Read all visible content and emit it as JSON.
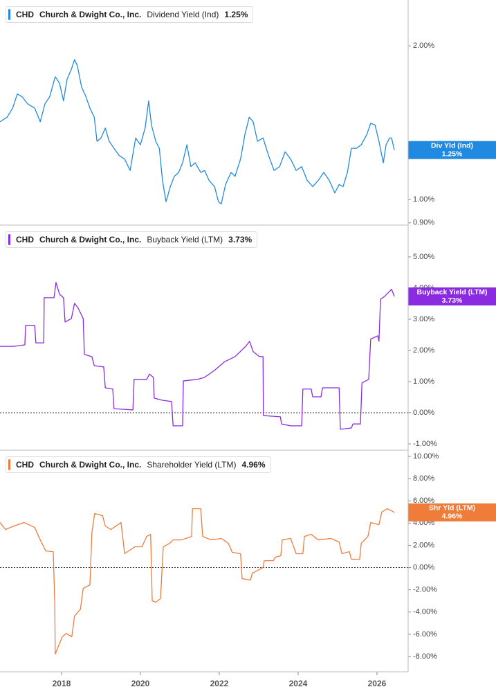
{
  "chart_data": [
    {
      "type": "line",
      "header": {
        "ticker": "CHD",
        "company": "Church & Dwight Co., Inc.",
        "metric": "Dividend Yield (Ind)",
        "value": "1.25%"
      },
      "badge": {
        "name": "Div Yld (Ind)",
        "value": "1.25%"
      },
      "log_scale": true,
      "xlim": [
        2016.44,
        2026.79
      ],
      "ylim": [
        0.891,
        2.46
      ],
      "yticks": [
        {
          "value": 2,
          "label": "2.00%"
        },
        {
          "value": 1,
          "label": "1.00%"
        },
        {
          "value": 0.9,
          "label": "0.90%"
        }
      ],
      "x": [
        2016.44,
        2016.62,
        2016.76,
        2016.88,
        2017.0,
        2017.14,
        2017.32,
        2017.46,
        2017.58,
        2017.7,
        2017.84,
        2017.95,
        2018.05,
        2018.14,
        2018.25,
        2018.33,
        2018.4,
        2018.51,
        2018.62,
        2018.72,
        2018.83,
        2018.9,
        2019.0,
        2019.11,
        2019.21,
        2019.33,
        2019.46,
        2019.6,
        2019.74,
        2019.88,
        2020.0,
        2020.12,
        2020.21,
        2020.28,
        2020.39,
        2020.48,
        2020.56,
        2020.65,
        2020.76,
        2020.86,
        2020.97,
        2021.07,
        2021.18,
        2021.28,
        2021.39,
        2021.53,
        2021.63,
        2021.74,
        2021.88,
        2021.98,
        2022.05,
        2022.16,
        2022.3,
        2022.4,
        2022.54,
        2022.65,
        2022.76,
        2022.86,
        2022.97,
        2023.11,
        2023.25,
        2023.39,
        2023.53,
        2023.67,
        2023.81,
        2023.95,
        2024.09,
        2024.23,
        2024.37,
        2024.51,
        2024.65,
        2024.79,
        2024.93,
        2025.04,
        2025.14,
        2025.25,
        2025.35,
        2025.48,
        2025.6,
        2025.74,
        2025.84,
        2025.95,
        2026.05,
        2026.16,
        2026.23,
        2026.32,
        2026.37,
        2026.44
      ],
      "series": [
        {
          "color": "#1f8ae0",
          "values": [
            1.42,
            1.45,
            1.51,
            1.61,
            1.59,
            1.54,
            1.51,
            1.42,
            1.54,
            1.59,
            1.74,
            1.69,
            1.56,
            1.72,
            1.8,
            1.88,
            1.83,
            1.66,
            1.59,
            1.51,
            1.45,
            1.3,
            1.32,
            1.38,
            1.3,
            1.26,
            1.22,
            1.2,
            1.14,
            1.32,
            1.28,
            1.38,
            1.56,
            1.4,
            1.3,
            1.26,
            1.09,
            0.99,
            1.06,
            1.11,
            1.13,
            1.18,
            1.28,
            1.16,
            1.18,
            1.13,
            1.14,
            1.09,
            1.06,
            0.99,
            0.98,
            1.07,
            1.13,
            1.11,
            1.2,
            1.34,
            1.45,
            1.42,
            1.3,
            1.32,
            1.22,
            1.14,
            1.16,
            1.24,
            1.2,
            1.14,
            1.16,
            1.09,
            1.06,
            1.09,
            1.13,
            1.09,
            1.03,
            1.07,
            1.06,
            1.13,
            1.26,
            1.26,
            1.28,
            1.34,
            1.41,
            1.4,
            1.3,
            1.18,
            1.28,
            1.32,
            1.32,
            1.25
          ]
        }
      ]
    },
    {
      "type": "line",
      "header": {
        "ticker": "CHD",
        "company": "Church & Dwight Co., Inc.",
        "metric": "Buyback Yield (LTM)",
        "value": "3.73%"
      },
      "badge": {
        "name": "Buyback Yield (LTM)",
        "value": "3.73%"
      },
      "zero_line": true,
      "xlim": [
        2016.44,
        2026.79
      ],
      "ylim": [
        -1.2,
        6.02
      ],
      "yticks": [
        {
          "value": 5,
          "label": "5.00%"
        },
        {
          "value": 4,
          "label": "4.00%"
        },
        {
          "value": 3,
          "label": "3.00%"
        },
        {
          "value": 2,
          "label": "2.00%"
        },
        {
          "value": 1,
          "label": "1.00%"
        },
        {
          "value": 0,
          "label": "0.00%"
        },
        {
          "value": -1,
          "label": "-1.00%"
        }
      ],
      "x": [
        2016.44,
        2016.79,
        2017.07,
        2017.09,
        2017.32,
        2017.35,
        2017.55,
        2017.56,
        2017.81,
        2017.86,
        2017.95,
        2018.05,
        2018.09,
        2018.25,
        2018.33,
        2018.42,
        2018.55,
        2018.58,
        2018.77,
        2018.83,
        2019.07,
        2019.11,
        2019.3,
        2019.33,
        2019.81,
        2019.84,
        2020.16,
        2020.23,
        2020.33,
        2020.35,
        2020.56,
        2020.79,
        2020.83,
        2021.07,
        2021.09,
        2021.44,
        2021.62,
        2021.88,
        2022.14,
        2022.4,
        2022.58,
        2022.67,
        2022.77,
        2022.86,
        2023.02,
        2023.11,
        2023.12,
        2023.55,
        2023.58,
        2023.81,
        2024.09,
        2024.12,
        2024.33,
        2024.37,
        2024.58,
        2024.62,
        2025.04,
        2025.07,
        2025.35,
        2025.39,
        2025.58,
        2025.62,
        2025.79,
        2025.84,
        2026.02,
        2026.05,
        2026.09,
        2026.19,
        2026.3,
        2026.37,
        2026.44
      ],
      "series": [
        {
          "color": "#8a2be2",
          "values": [
            2.13,
            2.13,
            2.18,
            2.8,
            2.8,
            2.24,
            2.24,
            3.69,
            3.69,
            4.18,
            3.8,
            3.69,
            2.91,
            3.02,
            3.51,
            3.36,
            3.02,
            1.87,
            1.8,
            1.51,
            1.47,
            0.8,
            0.76,
            0.13,
            0.09,
            1.07,
            1.07,
            1.24,
            1.13,
            0.47,
            0.4,
            0.36,
            -0.42,
            -0.42,
            1.02,
            1.07,
            1.13,
            1.36,
            1.64,
            1.8,
            2.02,
            2.13,
            2.29,
            1.96,
            1.8,
            1.8,
            -0.09,
            -0.13,
            -0.36,
            -0.42,
            -0.42,
            0.76,
            0.76,
            0.51,
            0.51,
            0.8,
            0.8,
            -0.53,
            -0.49,
            -0.36,
            -0.36,
            0.96,
            1.07,
            2.36,
            2.47,
            2.29,
            3.64,
            3.73,
            3.87,
            3.96,
            3.73
          ]
        }
      ]
    },
    {
      "type": "line",
      "header": {
        "ticker": "CHD",
        "company": "Church & Dwight Co., Inc.",
        "metric": "Shareholder Yield (LTM)",
        "value": "4.96%"
      },
      "badge": {
        "name": "Shr Yld (LTM)",
        "value": "4.96%"
      },
      "zero_line": true,
      "xlim": [
        2016.44,
        2026.79
      ],
      "xticks": [
        2018,
        2020,
        2022,
        2024,
        2026
      ],
      "ylim": [
        -9.37,
        10.56
      ],
      "yticks": [
        {
          "value": 10,
          "label": "10.00%"
        },
        {
          "value": 8,
          "label": "8.00%"
        },
        {
          "value": 6,
          "label": "6.00%"
        },
        {
          "value": 4,
          "label": "4.00%"
        },
        {
          "value": 2,
          "label": "2.00%"
        },
        {
          "value": 0,
          "label": "0.00%"
        },
        {
          "value": -2,
          "label": "-2.00%"
        },
        {
          "value": -4,
          "label": "-4.00%"
        },
        {
          "value": -6,
          "label": "-6.00%"
        },
        {
          "value": -8,
          "label": "-8.00%"
        }
      ],
      "x": [
        2016.44,
        2016.58,
        2016.79,
        2017.05,
        2017.32,
        2017.46,
        2017.6,
        2017.79,
        2017.83,
        2017.84,
        2017.91,
        2018.02,
        2018.12,
        2018.26,
        2018.33,
        2018.48,
        2018.55,
        2018.72,
        2018.77,
        2018.84,
        2019.04,
        2019.11,
        2019.25,
        2019.51,
        2019.6,
        2019.86,
        2020.04,
        2020.16,
        2020.26,
        2020.3,
        2020.39,
        2020.51,
        2020.58,
        2020.74,
        2020.83,
        2021.04,
        2021.3,
        2021.32,
        2021.53,
        2021.58,
        2021.79,
        2022.05,
        2022.23,
        2022.33,
        2022.54,
        2022.58,
        2022.79,
        2022.84,
        2023.11,
        2023.14,
        2023.37,
        2023.42,
        2023.56,
        2023.6,
        2023.81,
        2023.95,
        2024.12,
        2024.16,
        2024.33,
        2024.51,
        2024.83,
        2025.04,
        2025.11,
        2025.3,
        2025.35,
        2025.56,
        2025.6,
        2025.77,
        2025.84,
        2026.05,
        2026.12,
        2026.26,
        2026.37,
        2026.44
      ],
      "series": [
        {
          "color": "#f07c3a",
          "values": [
            4.05,
            3.42,
            3.74,
            4.05,
            3.61,
            2.49,
            1.49,
            1.43,
            -3.42,
            -7.78,
            -7.16,
            -6.23,
            -5.92,
            -6.23,
            -4.36,
            -3.74,
            -1.87,
            -1.56,
            3.11,
            4.86,
            4.67,
            3.74,
            3.42,
            4.05,
            1.25,
            1.87,
            1.87,
            2.8,
            2.99,
            -2.99,
            -3.11,
            -2.8,
            1.87,
            2.18,
            2.49,
            2.49,
            2.8,
            5.29,
            5.29,
            2.8,
            2.49,
            2.62,
            2.18,
            1.37,
            1.25,
            -1.0,
            -1.12,
            -0.5,
            0.0,
            0.62,
            0.62,
            0.93,
            1.06,
            2.49,
            2.62,
            1.25,
            1.25,
            2.8,
            2.99,
            2.49,
            2.62,
            2.3,
            1.25,
            1.43,
            0.75,
            0.75,
            2.18,
            2.8,
            4.05,
            3.86,
            4.98,
            5.29,
            5.11,
            4.96
          ]
        }
      ]
    }
  ]
}
